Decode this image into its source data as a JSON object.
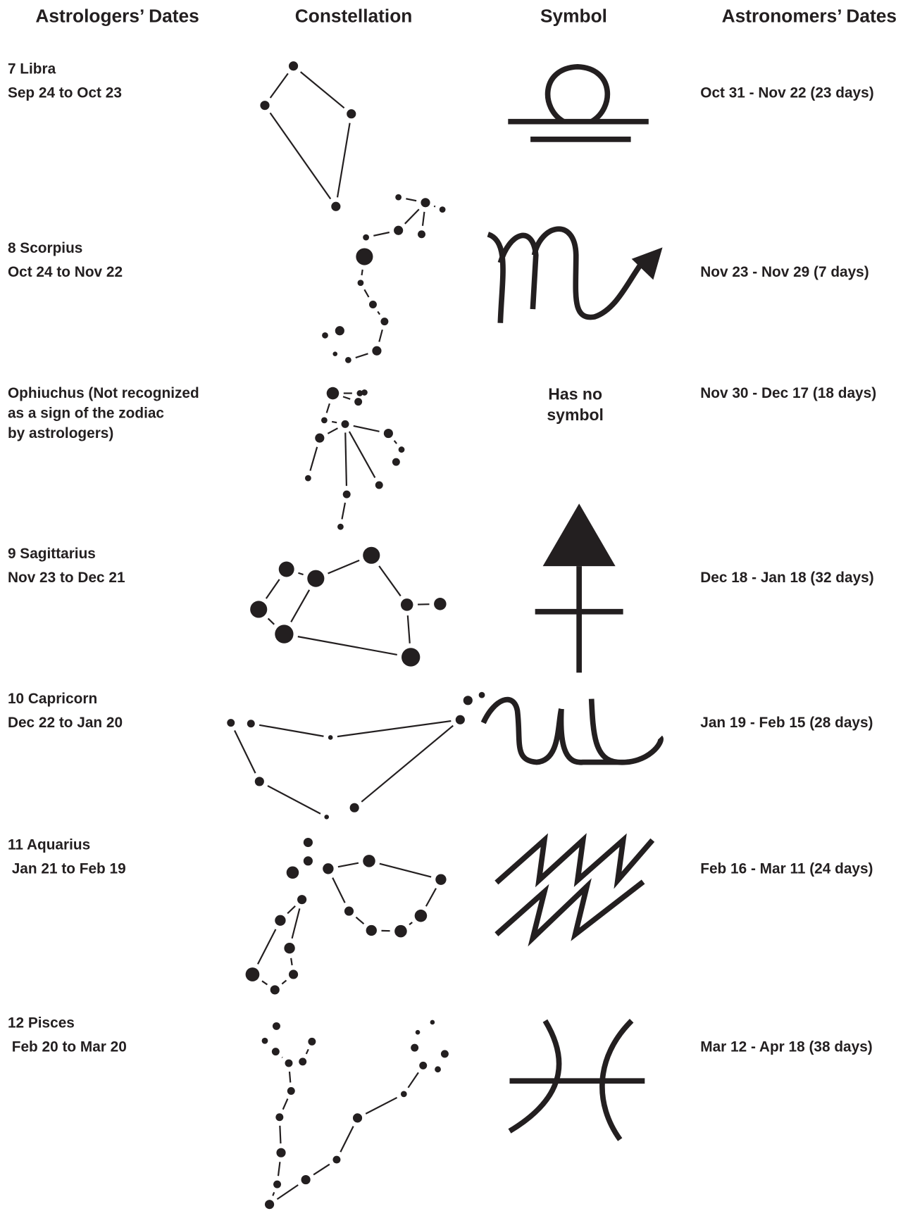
{
  "headers": [
    "Astrologers’ Dates",
    "Constellation",
    "Symbol",
    "Astronomers’ Dates"
  ],
  "rows": [
    {
      "label_lines": [
        "7 Libra",
        "Sep 24 to Oct 23"
      ],
      "astronomers_dates": "Oct 31 - Nov 22 (23 days)"
    },
    {
      "label_lines": [
        "8 Scorpius",
        "Oct 24 to Nov 22"
      ],
      "astronomers_dates": "Nov 23 - Nov 29 (7 days)"
    },
    {
      "label_lines": [
        "Ophiuchus (Not recognized",
        "as a sign of the zodiac",
        "by astrologers)"
      ],
      "symbol_lines": [
        "Has no",
        "symbol"
      ],
      "astronomers_dates": "Nov 30 - Dec 17 (18 days)"
    },
    {
      "label_lines": [
        "9 Sagittarius",
        "Nov 23 to Dec 21"
      ],
      "astronomers_dates": "Dec 18 - Jan 18 (32 days)"
    },
    {
      "label_lines": [
        "10 Capricorn",
        "Dec 22 to Jan 20"
      ],
      "astronomers_dates": "Jan 19 - Feb 15 (28 days)"
    },
    {
      "label_lines": [
        "11 Aquarius",
        " Jan 21 to Feb 19"
      ],
      "astronomers_dates": "Feb 16 - Mar 11 (24 days)"
    },
    {
      "label_lines": [
        "12 Pisces",
        " Feb 20 to Mar 20"
      ],
      "astronomers_dates": "Mar 12 - Apr 18 (38 days)"
    }
  ]
}
